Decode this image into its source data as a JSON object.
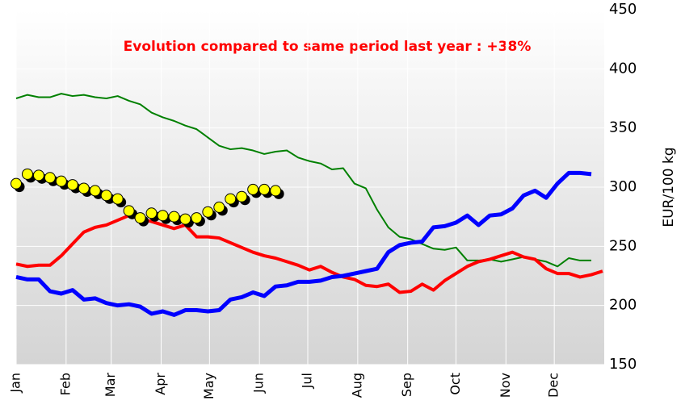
{
  "chart_data": {
    "type": "line",
    "annotation": "Evolution compared to same period last year : +38%",
    "y_label": "EUR/100 kg",
    "x": [
      1,
      8,
      15,
      22,
      29,
      36,
      43,
      50,
      57,
      64,
      71,
      78,
      85,
      92,
      99,
      106,
      113,
      120,
      127,
      134,
      141,
      148,
      155,
      162,
      169,
      176,
      183,
      190,
      197,
      204,
      211,
      218,
      225,
      232,
      239,
      246,
      253,
      260,
      267,
      274,
      281,
      288,
      295,
      302,
      309,
      316,
      323,
      330,
      337,
      344,
      351,
      358,
      365
    ],
    "xlim": [
      1,
      366
    ],
    "xticks": [
      {
        "value": 1,
        "label": "Jan"
      },
      {
        "value": 32,
        "label": "Feb"
      },
      {
        "value": 60,
        "label": "Mar"
      },
      {
        "value": 91,
        "label": "Apr"
      },
      {
        "value": 121,
        "label": "May"
      },
      {
        "value": 152,
        "label": "Jun"
      },
      {
        "value": 182,
        "label": "Jul"
      },
      {
        "value": 213,
        "label": "Aug"
      },
      {
        "value": 244,
        "label": "Sep"
      },
      {
        "value": 274,
        "label": "Oct"
      },
      {
        "value": 305,
        "label": "Nov"
      },
      {
        "value": 335,
        "label": "Dec"
      }
    ],
    "ylim": [
      150,
      450
    ],
    "yticks": [
      150,
      200,
      250,
      300,
      350,
      400,
      450
    ],
    "grid": true,
    "series": [
      {
        "color": "#008000",
        "width": 2,
        "values": [
          375,
          378,
          376,
          376,
          379,
          377,
          378,
          376,
          375,
          377,
          373,
          370,
          363,
          359,
          356,
          352,
          349,
          342,
          335,
          332,
          333,
          331,
          328,
          330,
          331,
          325,
          322,
          320,
          315,
          316,
          303,
          299,
          281,
          266,
          258,
          256,
          252,
          248,
          247,
          249,
          238,
          238,
          239,
          237,
          239,
          241,
          239,
          237,
          233,
          240,
          238,
          238,
          null
        ]
      },
      {
        "color": "#ff0000",
        "width": 4,
        "values": [
          235,
          233,
          234,
          234,
          242,
          252,
          262,
          266,
          268,
          272,
          276,
          273,
          271,
          268,
          265,
          268,
          258,
          258,
          257,
          253,
          249,
          245,
          242,
          240,
          237,
          234,
          230,
          233,
          228,
          224,
          222,
          217,
          216,
          218,
          211,
          212,
          218,
          213,
          221,
          227,
          233,
          237,
          239,
          242,
          245,
          241,
          239,
          231,
          227,
          227,
          224,
          226,
          229
        ]
      },
      {
        "color": "#0000ff",
        "width": 5,
        "values": [
          224,
          222,
          222,
          212,
          210,
          213,
          205,
          206,
          202,
          200,
          201,
          199,
          193,
          195,
          192,
          196,
          196,
          195,
          196,
          205,
          207,
          211,
          208,
          216,
          217,
          220,
          220,
          221,
          224,
          225,
          227,
          229,
          231,
          245,
          251,
          253,
          254,
          266,
          267,
          270,
          276,
          268,
          276,
          277,
          282,
          293,
          297,
          291,
          303,
          312,
          312,
          311,
          null
        ]
      },
      {
        "color": "#ffff00",
        "width": 0,
        "marker": true,
        "values": [
          303,
          311,
          310,
          308,
          305,
          302,
          299,
          297,
          293,
          290,
          280,
          274,
          278,
          276,
          275,
          273,
          274,
          279,
          283,
          290,
          292,
          298,
          298,
          297,
          null,
          null,
          null,
          null,
          null,
          null,
          null,
          null,
          null,
          null,
          null,
          null,
          null,
          null,
          null,
          null,
          null,
          null,
          null,
          null,
          null,
          null,
          null,
          null,
          null,
          null,
          null,
          null,
          null
        ]
      }
    ]
  }
}
